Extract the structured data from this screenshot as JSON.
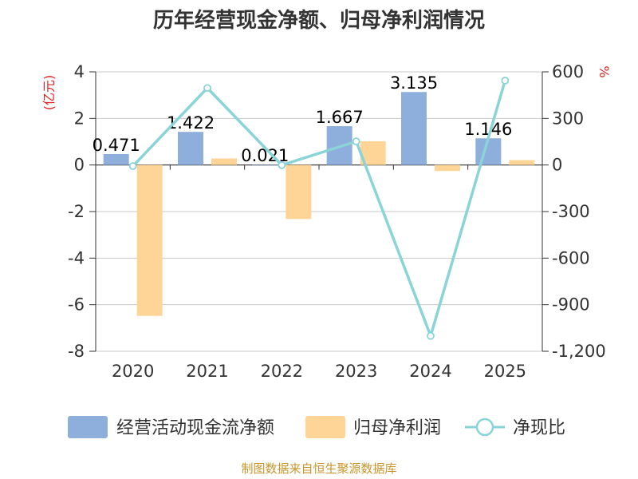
{
  "chart_data": {
    "type": "bar",
    "title": "历年经营现金净额、归母净利润情况",
    "categories": [
      "2020",
      "2021",
      "2022",
      "2023",
      "2024",
      "2025"
    ],
    "y_left": {
      "unit_label": "(亿元)",
      "range": [
        -8,
        4
      ],
      "ticks": [
        "-8",
        "-6",
        "-4",
        "-2",
        "0",
        "2",
        "4"
      ]
    },
    "y_right": {
      "unit_label": "%",
      "range": [
        -1200,
        600
      ],
      "ticks": [
        "-1,200",
        "-900",
        "-600",
        "-300",
        "0",
        "300",
        "600"
      ]
    },
    "series": [
      {
        "name": "经营活动现金流净额",
        "type": "bar",
        "axis": "left",
        "color": "#8eaedb",
        "values": [
          0.471,
          1.422,
          0.021,
          1.667,
          3.135,
          1.146
        ],
        "labels": [
          "0.471",
          "1.422",
          "0.021",
          "1.667",
          "3.135",
          "1.146"
        ]
      },
      {
        "name": "归母净利润",
        "type": "bar",
        "axis": "left",
        "color": "#fed597",
        "values": [
          -6.48,
          0.28,
          -2.32,
          1.02,
          -0.26,
          0.21
        ]
      },
      {
        "name": "净现比",
        "type": "line",
        "axis": "right",
        "color": "#8ad4d8",
        "values": [
          -7,
          496,
          -1,
          152,
          -1101,
          544
        ]
      }
    ],
    "grid": true,
    "legend_position": "bottom"
  },
  "source": "制图数据来自恒生聚源数据库"
}
